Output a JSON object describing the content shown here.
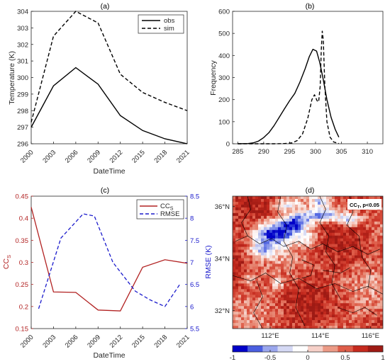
{
  "chart_data": [
    {
      "panel": "(a)",
      "type": "line",
      "xlabel": "DateTime",
      "ylabel": "Temperature (K)",
      "xlim": [
        2000,
        2021
      ],
      "ylim": [
        296,
        304
      ],
      "xticks": [
        "2000",
        "2003",
        "2006",
        "2009",
        "2012",
        "2015",
        "2018",
        "2021"
      ],
      "yticks": [
        "296",
        "297",
        "298",
        "299",
        "300",
        "301",
        "302",
        "303",
        "304"
      ],
      "legend": "top-right",
      "x": [
        2000,
        2003,
        2006,
        2009,
        2012,
        2015,
        2018,
        2021
      ],
      "series": [
        {
          "name": "obs",
          "style": "solid",
          "values": [
            297.0,
            299.5,
            300.6,
            299.6,
            297.7,
            296.8,
            296.3,
            296.0
          ]
        },
        {
          "name": "sim",
          "style": "dashed",
          "values": [
            297.3,
            302.5,
            304.0,
            303.3,
            300.2,
            299.1,
            298.5,
            298.0
          ]
        }
      ]
    },
    {
      "panel": "(b)",
      "type": "line",
      "xlabel": "",
      "ylabel": "Frequency",
      "xlim": [
        284,
        313
      ],
      "ylim": [
        0,
        600
      ],
      "xticks": [
        "285",
        "290",
        "295",
        "300",
        "305",
        "310"
      ],
      "yticks": [
        "0",
        "100",
        "200",
        "300",
        "400",
        "500",
        "600"
      ],
      "series": [
        {
          "style": "solid",
          "points": [
            [
              285,
              0
            ],
            [
              287,
              1
            ],
            [
              288,
              4
            ],
            [
              289,
              12
            ],
            [
              290,
              28
            ],
            [
              291,
              50
            ],
            [
              292,
              82
            ],
            [
              293,
              120
            ],
            [
              294,
              158
            ],
            [
              295,
              195
            ],
            [
              296,
              228
            ],
            [
              297,
              280
            ],
            [
              298,
              340
            ],
            [
              298.8,
              395
            ],
            [
              299.5,
              428
            ],
            [
              300.2,
              420
            ],
            [
              300.8,
              370
            ],
            [
              301.5,
              290
            ],
            [
              302.2,
              200
            ],
            [
              303,
              120
            ],
            [
              303.8,
              65
            ],
            [
              304.5,
              30
            ]
          ]
        },
        {
          "style": "dashed",
          "points": [
            [
              285,
              0
            ],
            [
              292,
              0
            ],
            [
              294,
              1
            ],
            [
              295.5,
              4
            ],
            [
              296.5,
              15
            ],
            [
              297.5,
              45
            ],
            [
              298.5,
              115
            ],
            [
              299.3,
              200
            ],
            [
              299.8,
              222
            ],
            [
              300.3,
              195
            ],
            [
              300.6,
              190
            ],
            [
              300.9,
              260
            ],
            [
              301.1,
              420
            ],
            [
              301.3,
              510
            ],
            [
              301.5,
              470
            ],
            [
              301.8,
              260
            ],
            [
              302.2,
              100
            ],
            [
              302.8,
              30
            ],
            [
              303.5,
              8
            ],
            [
              304.5,
              1
            ]
          ]
        }
      ]
    },
    {
      "panel": "(c)",
      "type": "line",
      "xlabel": "DateTime",
      "ylabel_left": "CC_S",
      "ylabel_right": "RMSE (K)",
      "xlim": [
        2000,
        2021
      ],
      "ylim_left": [
        0.15,
        0.45
      ],
      "ylim_right": [
        5.5,
        8.5
      ],
      "xticks": [
        "2000",
        "2003",
        "2006",
        "2009",
        "2012",
        "2015",
        "2018",
        "2021"
      ],
      "yticks_left": [
        "0.15",
        "0.2",
        "0.25",
        "0.3",
        "0.35",
        "0.4",
        "0.45"
      ],
      "yticks_right": [
        "5.5",
        "6",
        "6.5",
        "7",
        "7.5",
        "8",
        "8.5"
      ],
      "legend": "top-right",
      "colors": {
        "left": "#b22222",
        "right": "#1a1acc"
      },
      "series": [
        {
          "name": "CC",
          "name_sub": "S",
          "axis": "left",
          "style": "solid",
          "x": [
            2000,
            2003,
            2006,
            2009,
            2012,
            2015,
            2018,
            2021
          ],
          "values": [
            0.425,
            0.233,
            0.232,
            0.192,
            0.19,
            0.289,
            0.306,
            0.298
          ]
        },
        {
          "name": "RMSE",
          "axis": "right",
          "style": "dashed",
          "x": [
            2001,
            2004,
            2007,
            2008.5,
            2011,
            2014,
            2016,
            2018,
            2020
          ],
          "values": [
            5.95,
            7.55,
            8.1,
            8.05,
            7.0,
            6.35,
            6.15,
            6.0,
            6.5
          ]
        }
      ]
    },
    {
      "panel": "(d)",
      "type": "heatmap",
      "annotation_main": "CC",
      "annotation_sub": "T",
      "annotation_tail": ", p<0.05",
      "xticks": [
        "112°E",
        "114°E",
        "116°E"
      ],
      "yticks": [
        "32°N",
        "34°N",
        "36°N"
      ],
      "x_tick_values": [
        112,
        114,
        116
      ],
      "y_tick_values": [
        32,
        34,
        36
      ],
      "lon_range": [
        110.5,
        116.5
      ],
      "lat_range": [
        31.3,
        36.4
      ],
      "colorbar_ticks": [
        "-1",
        "-0.5",
        "0",
        "0.5",
        "1"
      ],
      "colorbar_range": [
        -1,
        1
      ],
      "colorscale": [
        "#0000c8",
        "#4a5ee0",
        "#9aa6ec",
        "#d5d9f4",
        "#ffffff",
        "#f6d0c8",
        "#eb9a86",
        "#de5d49",
        "#c52a1e",
        "#9e1a14"
      ]
    }
  ]
}
